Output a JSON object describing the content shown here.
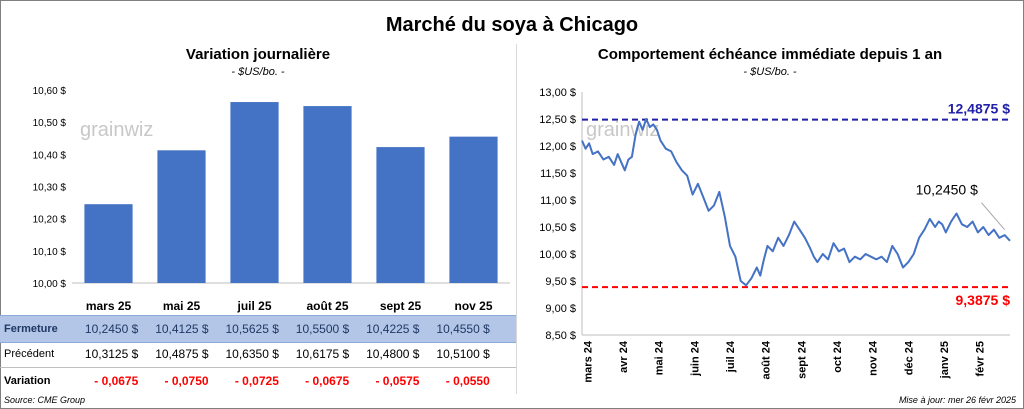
{
  "title": "Marché du soya à Chicago",
  "left": {
    "subtitle": "Variation journalière",
    "unit": "- $US/bo. -",
    "watermark": "grainwiz"
  },
  "right": {
    "subtitle": "Comportement échéance immédiate depuis 1 an",
    "unit": "- $US/bo. -",
    "watermark": "grainwiz",
    "high_label": "12,4875 $",
    "low_label": "9,3875 $",
    "last_label": "10,2450 $"
  },
  "table": {
    "close_label": "Fermeture",
    "prev_label": "Précédent",
    "var_label": "Variation",
    "close": [
      "10,2450  $",
      "10,4125  $",
      "10,5625  $",
      "10,5500  $",
      "10,4225  $",
      "10,4550  $"
    ],
    "prev": [
      "10,3125  $",
      "10,4875  $",
      "10,6350  $",
      "10,6175  $",
      "10,4800  $",
      "10,5100  $"
    ],
    "var": [
      "- 0,0675",
      "- 0,0750",
      "- 0,0725",
      "- 0,0675",
      "- 0,0575",
      "- 0,0550"
    ]
  },
  "footer": {
    "source": "Source: CME Group",
    "updated": "Mise à jour: mer 26 févr 2025"
  },
  "colors": {
    "bar": "#4472c4",
    "line": "#4472c4",
    "high": "#1f1fa8",
    "low": "#ff0000"
  },
  "chart_data": [
    {
      "type": "bar",
      "title": "Variation journalière",
      "ylabel": "$US/bo.",
      "categories": [
        "mars 25",
        "mai 25",
        "juil 25",
        "août 25",
        "sept 25",
        "nov 25"
      ],
      "values": [
        10.245,
        10.4125,
        10.5625,
        10.55,
        10.4225,
        10.455
      ],
      "ylim": [
        10.0,
        10.6
      ],
      "yticks": [
        10.0,
        10.1,
        10.2,
        10.3,
        10.4,
        10.5,
        10.6
      ],
      "ytick_labels": [
        "10,00 $",
        "10,10 $",
        "10,20 $",
        "10,30 $",
        "10,40 $",
        "10,50 $",
        "10,60 $"
      ],
      "grid": false
    },
    {
      "type": "line",
      "title": "Comportement échéance immédiate depuis 1 an",
      "ylabel": "$US/bo.",
      "ylim": [
        8.5,
        13.0
      ],
      "yticks": [
        8.5,
        9.0,
        9.5,
        10.0,
        10.5,
        11.0,
        11.5,
        12.0,
        12.5,
        13.0
      ],
      "ytick_labels": [
        "8,50 $",
        "9,00 $",
        "9,50 $",
        "10,00 $",
        "10,50 $",
        "11,00 $",
        "11,50 $",
        "12,00 $",
        "12,50 $",
        "13,00 $"
      ],
      "xtick_labels": [
        "mars 24",
        "avr 24",
        "mai 24",
        "juin 24",
        "juil 24",
        "août 24",
        "sept 24",
        "oct 24",
        "nov 24",
        "déc 24",
        "janv 25",
        "févr 25"
      ],
      "xlim": [
        0,
        12
      ],
      "high": 12.4875,
      "low": 9.3875,
      "last": 10.245,
      "series": [
        {
          "x": [
            0,
            0.1,
            0.2,
            0.3,
            0.45,
            0.6,
            0.75,
            0.9,
            1.0,
            1.1,
            1.2,
            1.3,
            1.4,
            1.5,
            1.6,
            1.7,
            1.8,
            1.9,
            2.0,
            2.1,
            2.2,
            2.35,
            2.5,
            2.65,
            2.8,
            2.95,
            3.1,
            3.25,
            3.4,
            3.55,
            3.7,
            3.85,
            4.0,
            4.15,
            4.3,
            4.45,
            4.6,
            4.75,
            4.9,
            5.0,
            5.1,
            5.2,
            5.35,
            5.5,
            5.65,
            5.8,
            5.95,
            6.1,
            6.25,
            6.4,
            6.5,
            6.6,
            6.75,
            6.9,
            7.05,
            7.2,
            7.35,
            7.5,
            7.65,
            7.8,
            7.95,
            8.1,
            8.25,
            8.4,
            8.55,
            8.7,
            8.85,
            9.0,
            9.15,
            9.3,
            9.45,
            9.6,
            9.75,
            9.9,
            10.0,
            10.1,
            10.2,
            10.35,
            10.5,
            10.65,
            10.8,
            10.95,
            11.1,
            11.25,
            11.4,
            11.55,
            11.7,
            11.85,
            12.0
          ],
          "y": [
            12.1,
            11.95,
            12.05,
            11.85,
            11.9,
            11.75,
            11.8,
            11.65,
            11.85,
            11.7,
            11.55,
            11.75,
            11.8,
            12.2,
            12.45,
            12.3,
            12.5,
            12.35,
            12.4,
            12.3,
            12.1,
            11.95,
            11.9,
            11.7,
            11.55,
            11.45,
            11.1,
            11.3,
            11.05,
            10.8,
            10.9,
            11.15,
            10.7,
            10.15,
            9.95,
            9.5,
            9.42,
            9.55,
            9.75,
            9.6,
            9.9,
            10.15,
            10.05,
            10.3,
            10.15,
            10.35,
            10.6,
            10.45,
            10.3,
            10.1,
            9.95,
            9.85,
            10.0,
            9.9,
            10.2,
            10.05,
            10.1,
            9.85,
            9.95,
            9.9,
            10.0,
            9.95,
            9.9,
            9.95,
            9.85,
            10.15,
            10.0,
            9.75,
            9.85,
            10.0,
            10.3,
            10.45,
            10.65,
            10.5,
            10.6,
            10.55,
            10.4,
            10.6,
            10.75,
            10.55,
            10.5,
            10.6,
            10.4,
            10.5,
            10.35,
            10.45,
            10.3,
            10.35,
            10.245
          ]
        }
      ],
      "grid": false
    }
  ]
}
